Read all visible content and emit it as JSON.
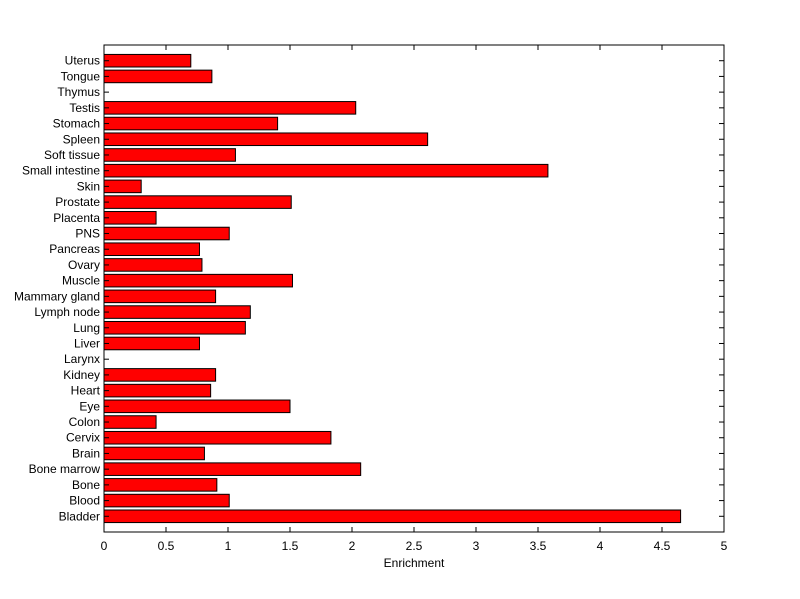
{
  "chart_data": {
    "type": "bar",
    "orientation": "horizontal",
    "categories": [
      "Bladder",
      "Blood",
      "Bone",
      "Bone marrow",
      "Brain",
      "Cervix",
      "Colon",
      "Eye",
      "Heart",
      "Kidney",
      "Larynx",
      "Liver",
      "Lung",
      "Lymph node",
      "Mammary gland",
      "Muscle",
      "Ovary",
      "Pancreas",
      "PNS",
      "Placenta",
      "Prostate",
      "Skin",
      "Small intestine",
      "Soft tissue",
      "Spleen",
      "Stomach",
      "Testis",
      "Thymus",
      "Tongue",
      "Uterus"
    ],
    "values": [
      4.65,
      1.01,
      0.91,
      2.07,
      0.81,
      1.83,
      0.42,
      1.5,
      0.86,
      0.9,
      0,
      0.77,
      1.14,
      1.18,
      0.9,
      1.52,
      0.79,
      0.77,
      1.01,
      0.42,
      1.51,
      0.3,
      3.58,
      1.06,
      2.61,
      1.4,
      2.03,
      0,
      0.87,
      0.7
    ],
    "title": "",
    "xlabel": "Enrichment",
    "ylabel": "",
    "xlim": [
      0,
      5
    ],
    "xticks": [
      "0",
      "0.5",
      "1",
      "1.5",
      "2",
      "2.5",
      "3",
      "3.5",
      "4",
      "4.5",
      "5"
    ],
    "grid": false,
    "bar_color": "#ff0000"
  }
}
